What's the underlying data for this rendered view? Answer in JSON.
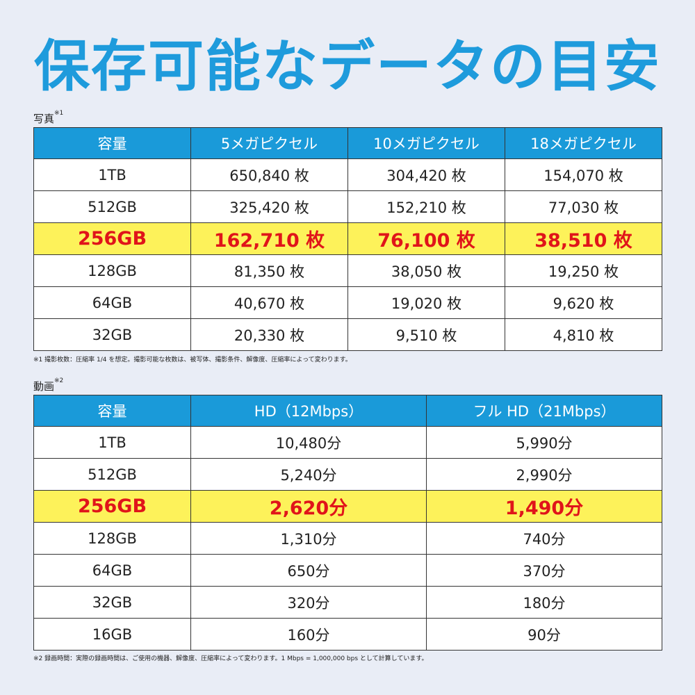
{
  "page_title": "保存可能なデータの目安",
  "photo": {
    "label": "写真",
    "label_mark": "※1",
    "headers": [
      "容量",
      "5メガピクセル",
      "10メガピクセル",
      "18メガピクセル"
    ],
    "rows": [
      [
        "1TB",
        "650,840 枚",
        "304,420 枚",
        "154,070 枚"
      ],
      [
        "512GB",
        "325,420 枚",
        "152,210 枚",
        "77,030 枚"
      ],
      [
        "256GB",
        "162,710 枚",
        "76,100 枚",
        "38,510 枚"
      ],
      [
        "128GB",
        "81,350 枚",
        "38,050 枚",
        "19,250 枚"
      ],
      [
        "64GB",
        "40,670 枚",
        "19,020 枚",
        "9,620 枚"
      ],
      [
        "32GB",
        "20,330 枚",
        "9,510 枚",
        "4,810 枚"
      ]
    ],
    "highlight_row": 2,
    "footnote": "※1 撮影枚数：圧縮率 1/4 を想定。撮影可能な枚数は、被写体、撮影条件、解像度、圧縮率によって変わります。"
  },
  "video": {
    "label": "動画",
    "label_mark": "※2",
    "headers": [
      "容量",
      "HD（12Mbps）",
      "フル HD（21Mbps）"
    ],
    "rows": [
      [
        "1TB",
        "10,480分",
        "5,990分"
      ],
      [
        "512GB",
        "5,240分",
        "2,990分"
      ],
      [
        "256GB",
        "2,620分",
        "1,490分"
      ],
      [
        "128GB",
        "1,310分",
        "740分"
      ],
      [
        "64GB",
        "650分",
        "370分"
      ],
      [
        "32GB",
        "320分",
        "180分"
      ],
      [
        "16GB",
        "160分",
        "90分"
      ]
    ],
    "highlight_row": 2,
    "footnote": "※2 録画時間：実際の録画時間は、ご使用の機器、解像度、圧縮率によって変わります。1 Mbps = 1,000,000 bps として計算しています。"
  }
}
